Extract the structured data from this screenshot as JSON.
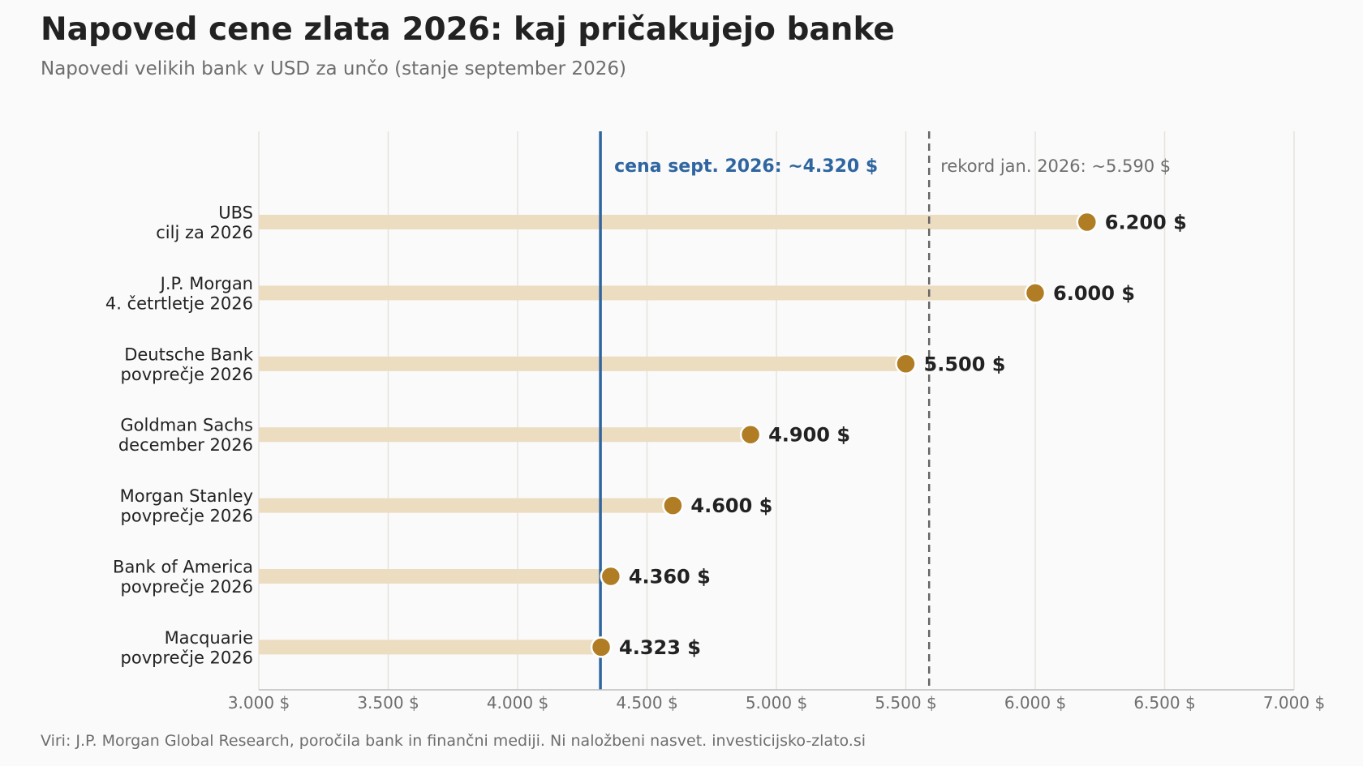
{
  "title": "Napoved cene zlata 2026: kaj pričakujejo banke",
  "subtitle": "Napovedi velikih bank v USD za unčo (stanje september 2026)",
  "footer": "Viri: J.P. Morgan Global Research, poročila bank in finančni mediji. Ni naložbeni nasvet.  investicijsko-zlato.si",
  "colors": {
    "dot": "#b07d24",
    "bar": "#ecdcc0",
    "current_line": "#2f66a0",
    "record_line": "#666666",
    "grid": "#e6e3dc",
    "text": "#222222",
    "muted": "#6e6e6e"
  },
  "chart_data": {
    "type": "dot",
    "xlim": [
      3000,
      7000
    ],
    "x_ticks": [
      {
        "value": 3000,
        "label": "3.000 $"
      },
      {
        "value": 3500,
        "label": "3.500 $"
      },
      {
        "value": 4000,
        "label": "4.000 $"
      },
      {
        "value": 4500,
        "label": "4.500 $"
      },
      {
        "value": 5000,
        "label": "5.000 $"
      },
      {
        "value": 5500,
        "label": "5.500 $"
      },
      {
        "value": 6000,
        "label": "6.000 $"
      },
      {
        "value": 6500,
        "label": "6.500 $"
      },
      {
        "value": 7000,
        "label": "7.000 $"
      }
    ],
    "grid": true,
    "categories": [
      {
        "bank": "UBS",
        "detail": "cilj za 2026",
        "value": 6200,
        "label": "6.200 $"
      },
      {
        "bank": "J.P. Morgan",
        "detail": "4. četrtletje 2026",
        "value": 6000,
        "label": "6.000 $"
      },
      {
        "bank": "Deutsche Bank",
        "detail": "povprečje 2026",
        "value": 5500,
        "label": "5.500 $"
      },
      {
        "bank": "Goldman Sachs",
        "detail": "december 2026",
        "value": 4900,
        "label": "4.900 $"
      },
      {
        "bank": "Morgan Stanley",
        "detail": "povprečje 2026",
        "value": 4600,
        "label": "4.600 $"
      },
      {
        "bank": "Bank of America",
        "detail": "povprečje 2026",
        "value": 4360,
        "label": "4.360 $"
      },
      {
        "bank": "Macquarie",
        "detail": "povprečje 2026",
        "value": 4323,
        "label": "4.323 $"
      }
    ],
    "reference_lines": [
      {
        "name": "current",
        "value": 4320,
        "label": "cena sept. 2026: ~4.320 $",
        "style": "solid"
      },
      {
        "name": "record",
        "value": 5590,
        "label": "rekord jan. 2026: ~5.590 $",
        "style": "dashed"
      }
    ]
  }
}
